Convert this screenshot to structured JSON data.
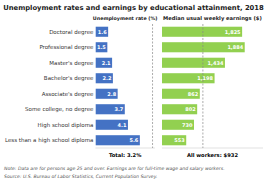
{
  "title": "Unemployment rates and earnings by educational attainment, 2018",
  "notes": [
    "Note: Data are for persons age 25 and over. Earnings are for full-time wage and salary workers.",
    "Source: U.S. Bureau of Labor Statistics, Current Population Survey."
  ],
  "chart_data": [
    {
      "type": "bar",
      "orientation": "horizontal",
      "title": "Unemployment rate (%)",
      "categories": [
        "Doctoral degree",
        "Professional degree",
        "Master's degree",
        "Bachelor's degree",
        "Associate's degree",
        "Some college, no degree",
        "High school diploma",
        "Less than a high school diploma"
      ],
      "values": [
        1.6,
        1.5,
        2.1,
        2.2,
        2.8,
        3.7,
        4.1,
        5.6
      ],
      "color": "#4472c4",
      "xlim": [
        0,
        7.5
      ],
      "data_labels": true,
      "tick_labels": "y",
      "reference_line": 7.2,
      "annotations": [
        "Total: 3.2%"
      ]
    },
    {
      "type": "bar",
      "orientation": "horizontal",
      "title": "Median usual weekly earnings ($)",
      "values": [
        1825,
        1884,
        1434,
        1198,
        862,
        802,
        730,
        553
      ],
      "value_labels": [
        "1,825",
        "1,884",
        "1,434",
        "1,198",
        "862",
        "802",
        "730",
        "553"
      ],
      "color": "#92d050",
      "xlim": [
        0,
        2300
      ],
      "data_labels": true,
      "tick_labels": false,
      "reference_line": 932,
      "annotations": [
        "All workers: $932"
      ]
    }
  ]
}
